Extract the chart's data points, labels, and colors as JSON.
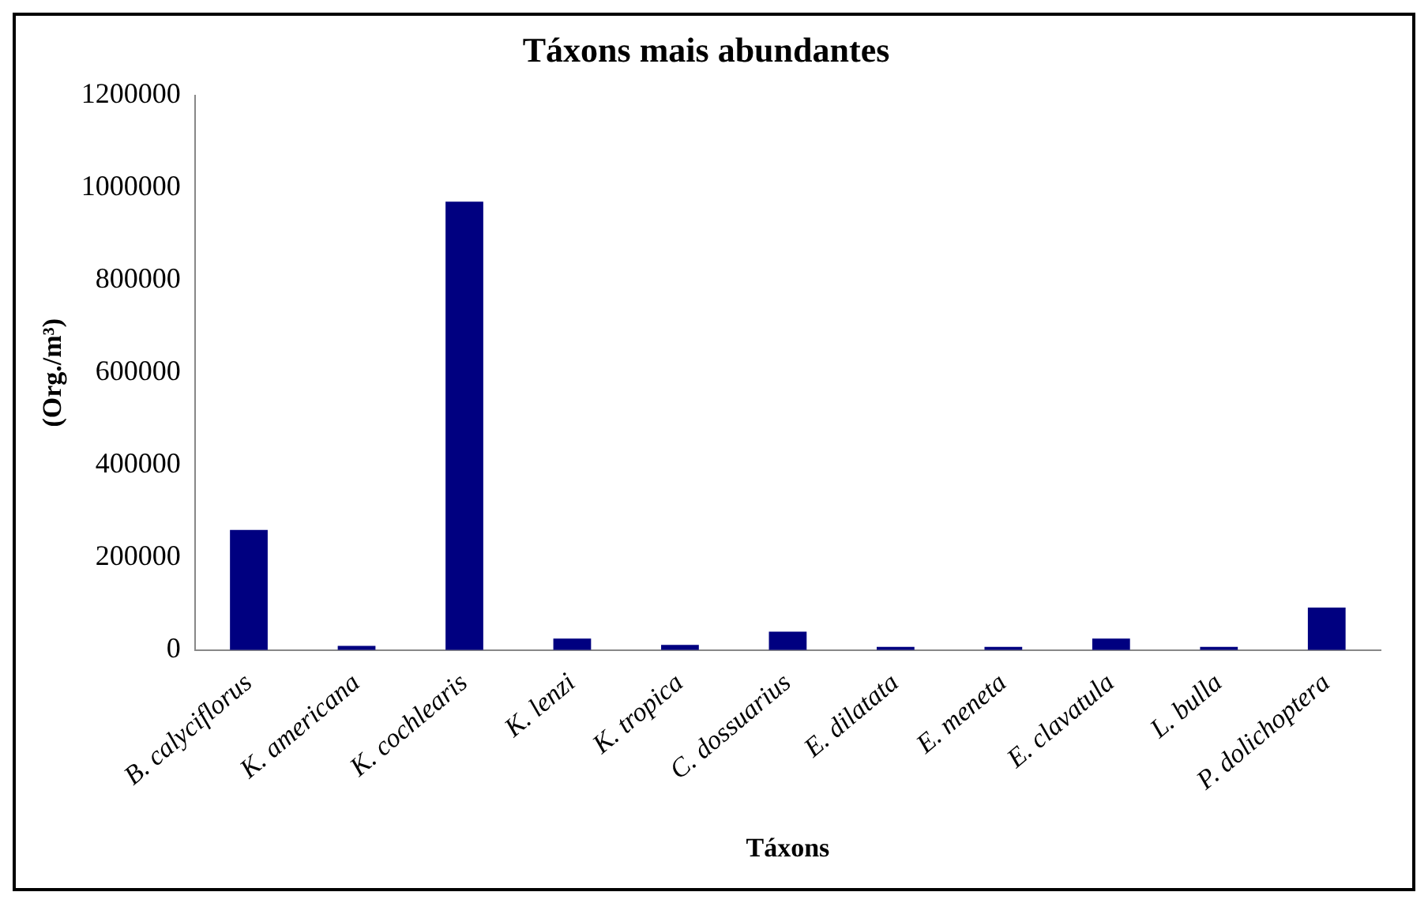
{
  "chart_data": {
    "type": "bar",
    "title": "Táxons mais abundantes",
    "xlabel": "Táxons",
    "ylabel": "(Org./m³)",
    "categories": [
      "B. calyciflorus",
      "K. americana",
      "K. cochlearis",
      "K. lenzi",
      "K. tropica",
      "C. dossuarius",
      "E. dilatata",
      "E. meneta",
      "E. clavatula",
      "L. bulla",
      "P. dolichoptera"
    ],
    "values": [
      260000,
      9000,
      970000,
      25000,
      11000,
      40000,
      7000,
      7000,
      25000,
      7000,
      92000
    ],
    "color": "#000080",
    "ylim": [
      0,
      1200000
    ],
    "yticks": [
      0,
      200000,
      400000,
      600000,
      800000,
      1000000,
      1200000
    ],
    "grid": false,
    "legend": false
  }
}
